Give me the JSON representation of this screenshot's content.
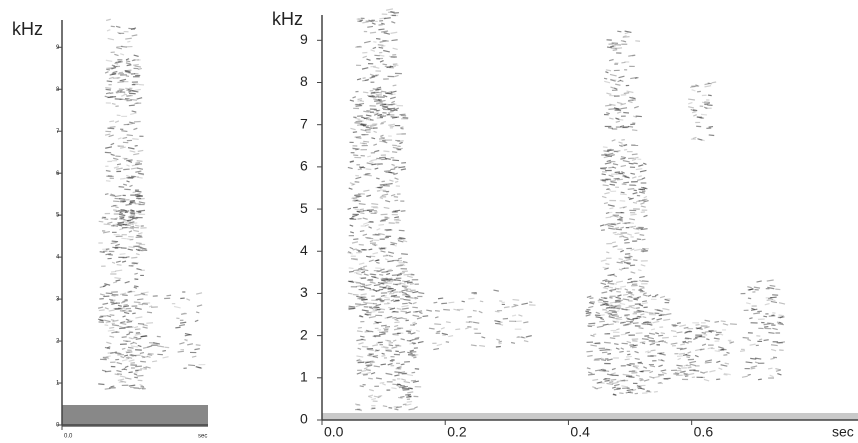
{
  "chart_data": [
    {
      "type": "spectrogram",
      "y_label": "kHz",
      "x_label": "sec",
      "ylim": [
        0,
        9.65
      ],
      "yticks": [
        0,
        1,
        2,
        3,
        4,
        5,
        6,
        7,
        8,
        9
      ],
      "xlim": [
        0,
        0.6
      ],
      "xticks": [
        {
          "value": 0,
          "label": "0.0"
        }
      ]
    },
    {
      "type": "spectrogram",
      "y_label": "kHz",
      "x_label": "sec",
      "ylim": [
        0,
        9.6
      ],
      "yticks": [
        0,
        1,
        2,
        3,
        4,
        5,
        6,
        7,
        8,
        9
      ],
      "xlim": [
        0,
        0.87
      ],
      "xticks": [
        {
          "value": 0,
          "label": "0.0"
        },
        {
          "value": 0.2,
          "label": "0.2"
        },
        {
          "value": 0.4,
          "label": "0.4"
        },
        {
          "value": 0.6,
          "label": "0.6"
        }
      ]
    }
  ]
}
